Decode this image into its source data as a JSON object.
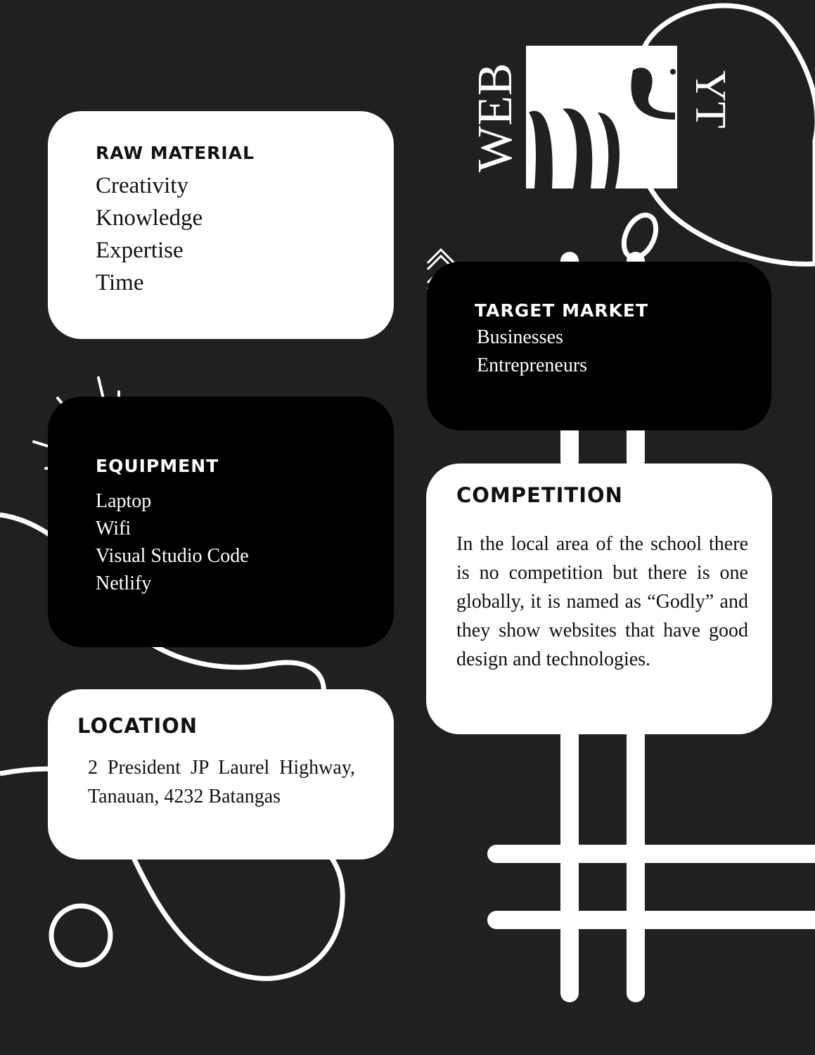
{
  "logo": {
    "left_text": "WEB",
    "right_text": "YT"
  },
  "raw_material": {
    "heading": "RAW MATERIAL",
    "items": [
      "Creativity",
      "Knowledge",
      "Expertise",
      "Time"
    ]
  },
  "target_market": {
    "heading": "TARGET MARKET",
    "items": [
      "Businesses",
      "Entrepreneurs"
    ]
  },
  "equipment": {
    "heading": "EQUIPMENT",
    "items": [
      "Laptop",
      "Wifi",
      "Visual Studio Code",
      "Netlify"
    ]
  },
  "competition": {
    "heading": "COMPETITION",
    "body": "In the local area of the school there is no competition but there is one globally, it is named as “Godly” and they show websites that have good design and technologies."
  },
  "location": {
    "heading": "LOCATION",
    "body": "2 President JP Laurel Highway, Tanauan, 4232 Batangas"
  },
  "colors": {
    "background": "#211f20",
    "light_card": "#ffffff",
    "dark_card": "#000000"
  }
}
